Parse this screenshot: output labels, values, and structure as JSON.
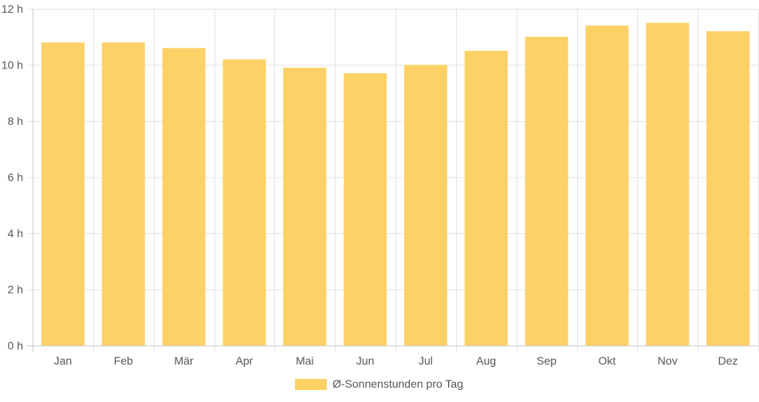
{
  "chart_data": {
    "type": "bar",
    "categories": [
      "Jan",
      "Feb",
      "Mär",
      "Apr",
      "Mai",
      "Jun",
      "Jul",
      "Aug",
      "Sep",
      "Okt",
      "Nov",
      "Dez"
    ],
    "series": [
      {
        "name": "Ø-Sonnenstunden pro Tag",
        "values": [
          10.8,
          10.8,
          10.6,
          10.2,
          9.9,
          9.7,
          10.0,
          10.5,
          11.0,
          11.4,
          11.5,
          11.2
        ],
        "color": "#fdd166"
      }
    ],
    "y_ticks": [
      "0 h",
      "2 h",
      "4 h",
      "6 h",
      "8 h",
      "10 h",
      "12 h"
    ],
    "ylim": [
      0,
      12
    ],
    "grid": true,
    "legend_position": "bottom",
    "colors": {
      "grid": "#e5e5e5",
      "axis": "#cccccc",
      "text": "#555555"
    }
  }
}
